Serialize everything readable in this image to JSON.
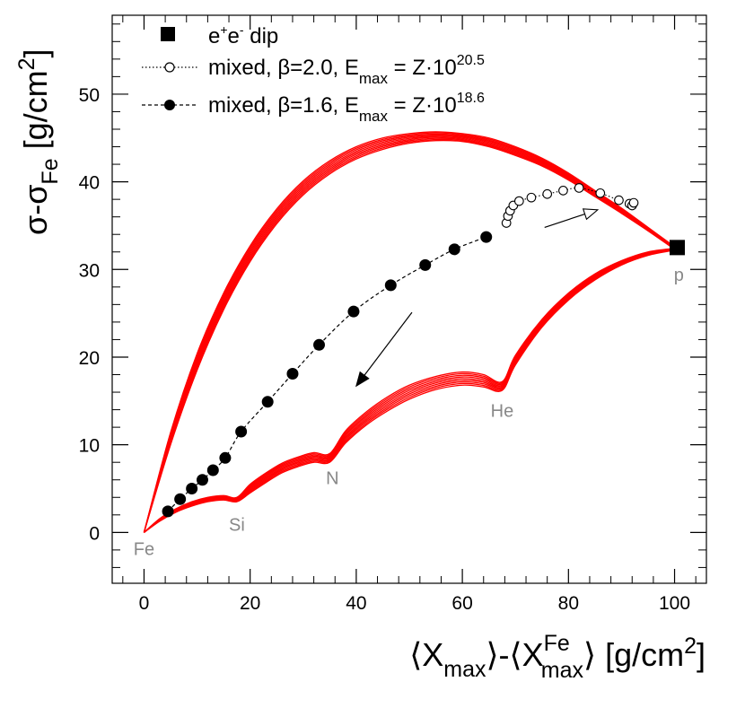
{
  "chart_data": {
    "type": "scatter",
    "xlim": [
      -6,
      106
    ],
    "ylim": [
      -5.8,
      59
    ],
    "x_ticks": [
      0,
      20,
      40,
      60,
      80,
      100
    ],
    "y_ticks": [
      0,
      10,
      20,
      30,
      40,
      50
    ],
    "x_minor_step": 4,
    "y_minor_step": 2,
    "xlabel": {
      "p1": "⟨X",
      "sub1": "max",
      "p2": "⟩-⟨X",
      "sup2": "Fe",
      "sub2": "max",
      "p3": "⟩ [g/cm",
      "sup3": "2",
      "p4": "]"
    },
    "ylabel": {
      "p1": "σ-σ",
      "sub1": "Fe",
      "p2": " [g/cm",
      "sup2": "2",
      "p3": "]"
    },
    "legend": {
      "position": "top-left",
      "entries": [
        {
          "marker": "square",
          "label": {
            "p1": "e",
            "s1": "+",
            "p2": "e",
            "s2": "-",
            "p3": " dip"
          }
        },
        {
          "marker": "open-circle-dotted",
          "label": {
            "p1": "mixed, β=2.0, E",
            "sub": "max",
            "p2": " = Z·10",
            "sup": "20.5"
          }
        },
        {
          "marker": "filled-circle-dashed",
          "label": {
            "p1": "mixed, β=1.6, E",
            "sub": "max",
            "p2": " = Z·10",
            "sup": "18.6"
          }
        }
      ]
    },
    "nucleus_labels": [
      {
        "text": "Fe",
        "x": 0,
        "y": -2.6
      },
      {
        "text": "Si",
        "x": 17.5,
        "y": 0.2
      },
      {
        "text": "N",
        "x": 35.5,
        "y": 5.5
      },
      {
        "text": "He",
        "x": 67.5,
        "y": 13.2
      },
      {
        "text": "p",
        "x": 100.8,
        "y": 28.7
      }
    ],
    "series": [
      {
        "name": "e+e- dip",
        "marker": "square",
        "points": [
          [
            100.5,
            32.5
          ]
        ]
      },
      {
        "name": "mixed, β=2.0",
        "marker": "open-circle",
        "points": [
          [
            68.3,
            35.3
          ],
          [
            68.6,
            36.1
          ],
          [
            69.0,
            36.7
          ],
          [
            69.6,
            37.3
          ],
          [
            70.7,
            37.8
          ],
          [
            73.0,
            38.2
          ],
          [
            76.0,
            38.6
          ],
          [
            79.0,
            39.0
          ],
          [
            82.0,
            39.3
          ],
          [
            86.0,
            38.7
          ],
          [
            89.5,
            37.9
          ],
          [
            91.5,
            37.5
          ],
          [
            92.0,
            37.3
          ],
          [
            92.3,
            37.6
          ]
        ]
      },
      {
        "name": "mixed, β=1.6",
        "marker": "filled-circle",
        "points": [
          [
            4.5,
            2.4
          ],
          [
            6.8,
            3.8
          ],
          [
            9.0,
            5.0
          ],
          [
            11.0,
            6.0
          ],
          [
            13.0,
            7.1
          ],
          [
            15.3,
            8.5
          ],
          [
            18.3,
            11.5
          ],
          [
            23.3,
            14.9
          ],
          [
            28.0,
            18.1
          ],
          [
            33.0,
            21.4
          ],
          [
            39.5,
            25.2
          ],
          [
            46.5,
            28.2
          ],
          [
            53.0,
            30.5
          ],
          [
            58.5,
            32.3
          ],
          [
            64.5,
            33.7
          ]
        ]
      }
    ],
    "arrows": [
      {
        "style": "filled",
        "from": [
          50.5,
          25.1
        ],
        "to": [
          40.0,
          16.7
        ]
      },
      {
        "style": "open",
        "from": [
          75.5,
          34.8
        ],
        "to": [
          85.5,
          36.8
        ]
      }
    ],
    "band": {
      "color": "#ff0000",
      "upper": [
        [
          0,
          0
        ],
        [
          5,
          11.4
        ],
        [
          10,
          20.4
        ],
        [
          15,
          27.3
        ],
        [
          20,
          32.7
        ],
        [
          25,
          36.9
        ],
        [
          30,
          40.1
        ],
        [
          35,
          42.4
        ],
        [
          40,
          44.0
        ],
        [
          45,
          45.0
        ],
        [
          50,
          45.5
        ],
        [
          55,
          45.7
        ],
        [
          60,
          45.5
        ],
        [
          65,
          45.0
        ],
        [
          70,
          44.0
        ],
        [
          75,
          42.7
        ],
        [
          80,
          41.0
        ],
        [
          85,
          39.0
        ],
        [
          90,
          37.0
        ],
        [
          95,
          34.8
        ],
        [
          100,
          32.6
        ]
      ],
      "upper_inner": [
        [
          0,
          0
        ],
        [
          5,
          10.0
        ],
        [
          10,
          18.5
        ],
        [
          15,
          25.4
        ],
        [
          20,
          30.9
        ],
        [
          25,
          35.2
        ],
        [
          30,
          38.5
        ],
        [
          35,
          40.9
        ],
        [
          40,
          42.6
        ],
        [
          45,
          43.7
        ],
        [
          50,
          44.4
        ],
        [
          55,
          44.7
        ],
        [
          60,
          44.6
        ],
        [
          65,
          44.0
        ],
        [
          70,
          43.0
        ],
        [
          75,
          41.8
        ],
        [
          80,
          40.2
        ],
        [
          85,
          38.3
        ],
        [
          90,
          36.4
        ],
        [
          95,
          34.4
        ],
        [
          100,
          32.3
        ]
      ],
      "lower": [
        [
          0,
          0
        ],
        [
          3,
          1.6
        ],
        [
          6,
          2.7
        ],
        [
          9,
          3.5
        ],
        [
          12,
          4.0
        ],
        [
          15,
          4.2
        ],
        [
          17.5,
          4.0
        ],
        [
          20,
          5.5
        ],
        [
          23,
          6.8
        ],
        [
          26,
          7.9
        ],
        [
          29,
          8.6
        ],
        [
          32,
          9.1
        ],
        [
          35,
          9.0
        ],
        [
          38,
          11.6
        ],
        [
          42,
          13.8
        ],
        [
          46,
          15.5
        ],
        [
          50,
          16.8
        ],
        [
          55,
          17.8
        ],
        [
          60,
          18.3
        ],
        [
          64,
          18.0
        ],
        [
          67.5,
          17.2
        ],
        [
          70,
          20.2
        ],
        [
          75,
          24.3
        ],
        [
          80,
          27.3
        ],
        [
          85,
          29.5
        ],
        [
          90,
          31.0
        ],
        [
          95,
          32.0
        ],
        [
          100,
          32.4
        ]
      ],
      "lower_inner": [
        [
          0,
          0
        ],
        [
          3,
          1.3
        ],
        [
          6,
          2.3
        ],
        [
          9,
          3.0
        ],
        [
          12,
          3.5
        ],
        [
          15,
          3.7
        ],
        [
          17.5,
          3.5
        ],
        [
          20,
          4.5
        ],
        [
          23,
          5.7
        ],
        [
          26,
          6.8
        ],
        [
          29,
          7.5
        ],
        [
          32,
          8.0
        ],
        [
          35,
          8.0
        ],
        [
          38,
          10.2
        ],
        [
          42,
          12.3
        ],
        [
          46,
          13.9
        ],
        [
          50,
          15.2
        ],
        [
          55,
          16.3
        ],
        [
          60,
          16.8
        ],
        [
          64,
          16.6
        ],
        [
          67.5,
          16.2
        ],
        [
          70,
          19.1
        ],
        [
          75,
          23.4
        ],
        [
          80,
          26.5
        ],
        [
          85,
          28.8
        ],
        [
          90,
          30.5
        ],
        [
          95,
          31.6
        ],
        [
          100,
          32.2
        ]
      ]
    }
  }
}
